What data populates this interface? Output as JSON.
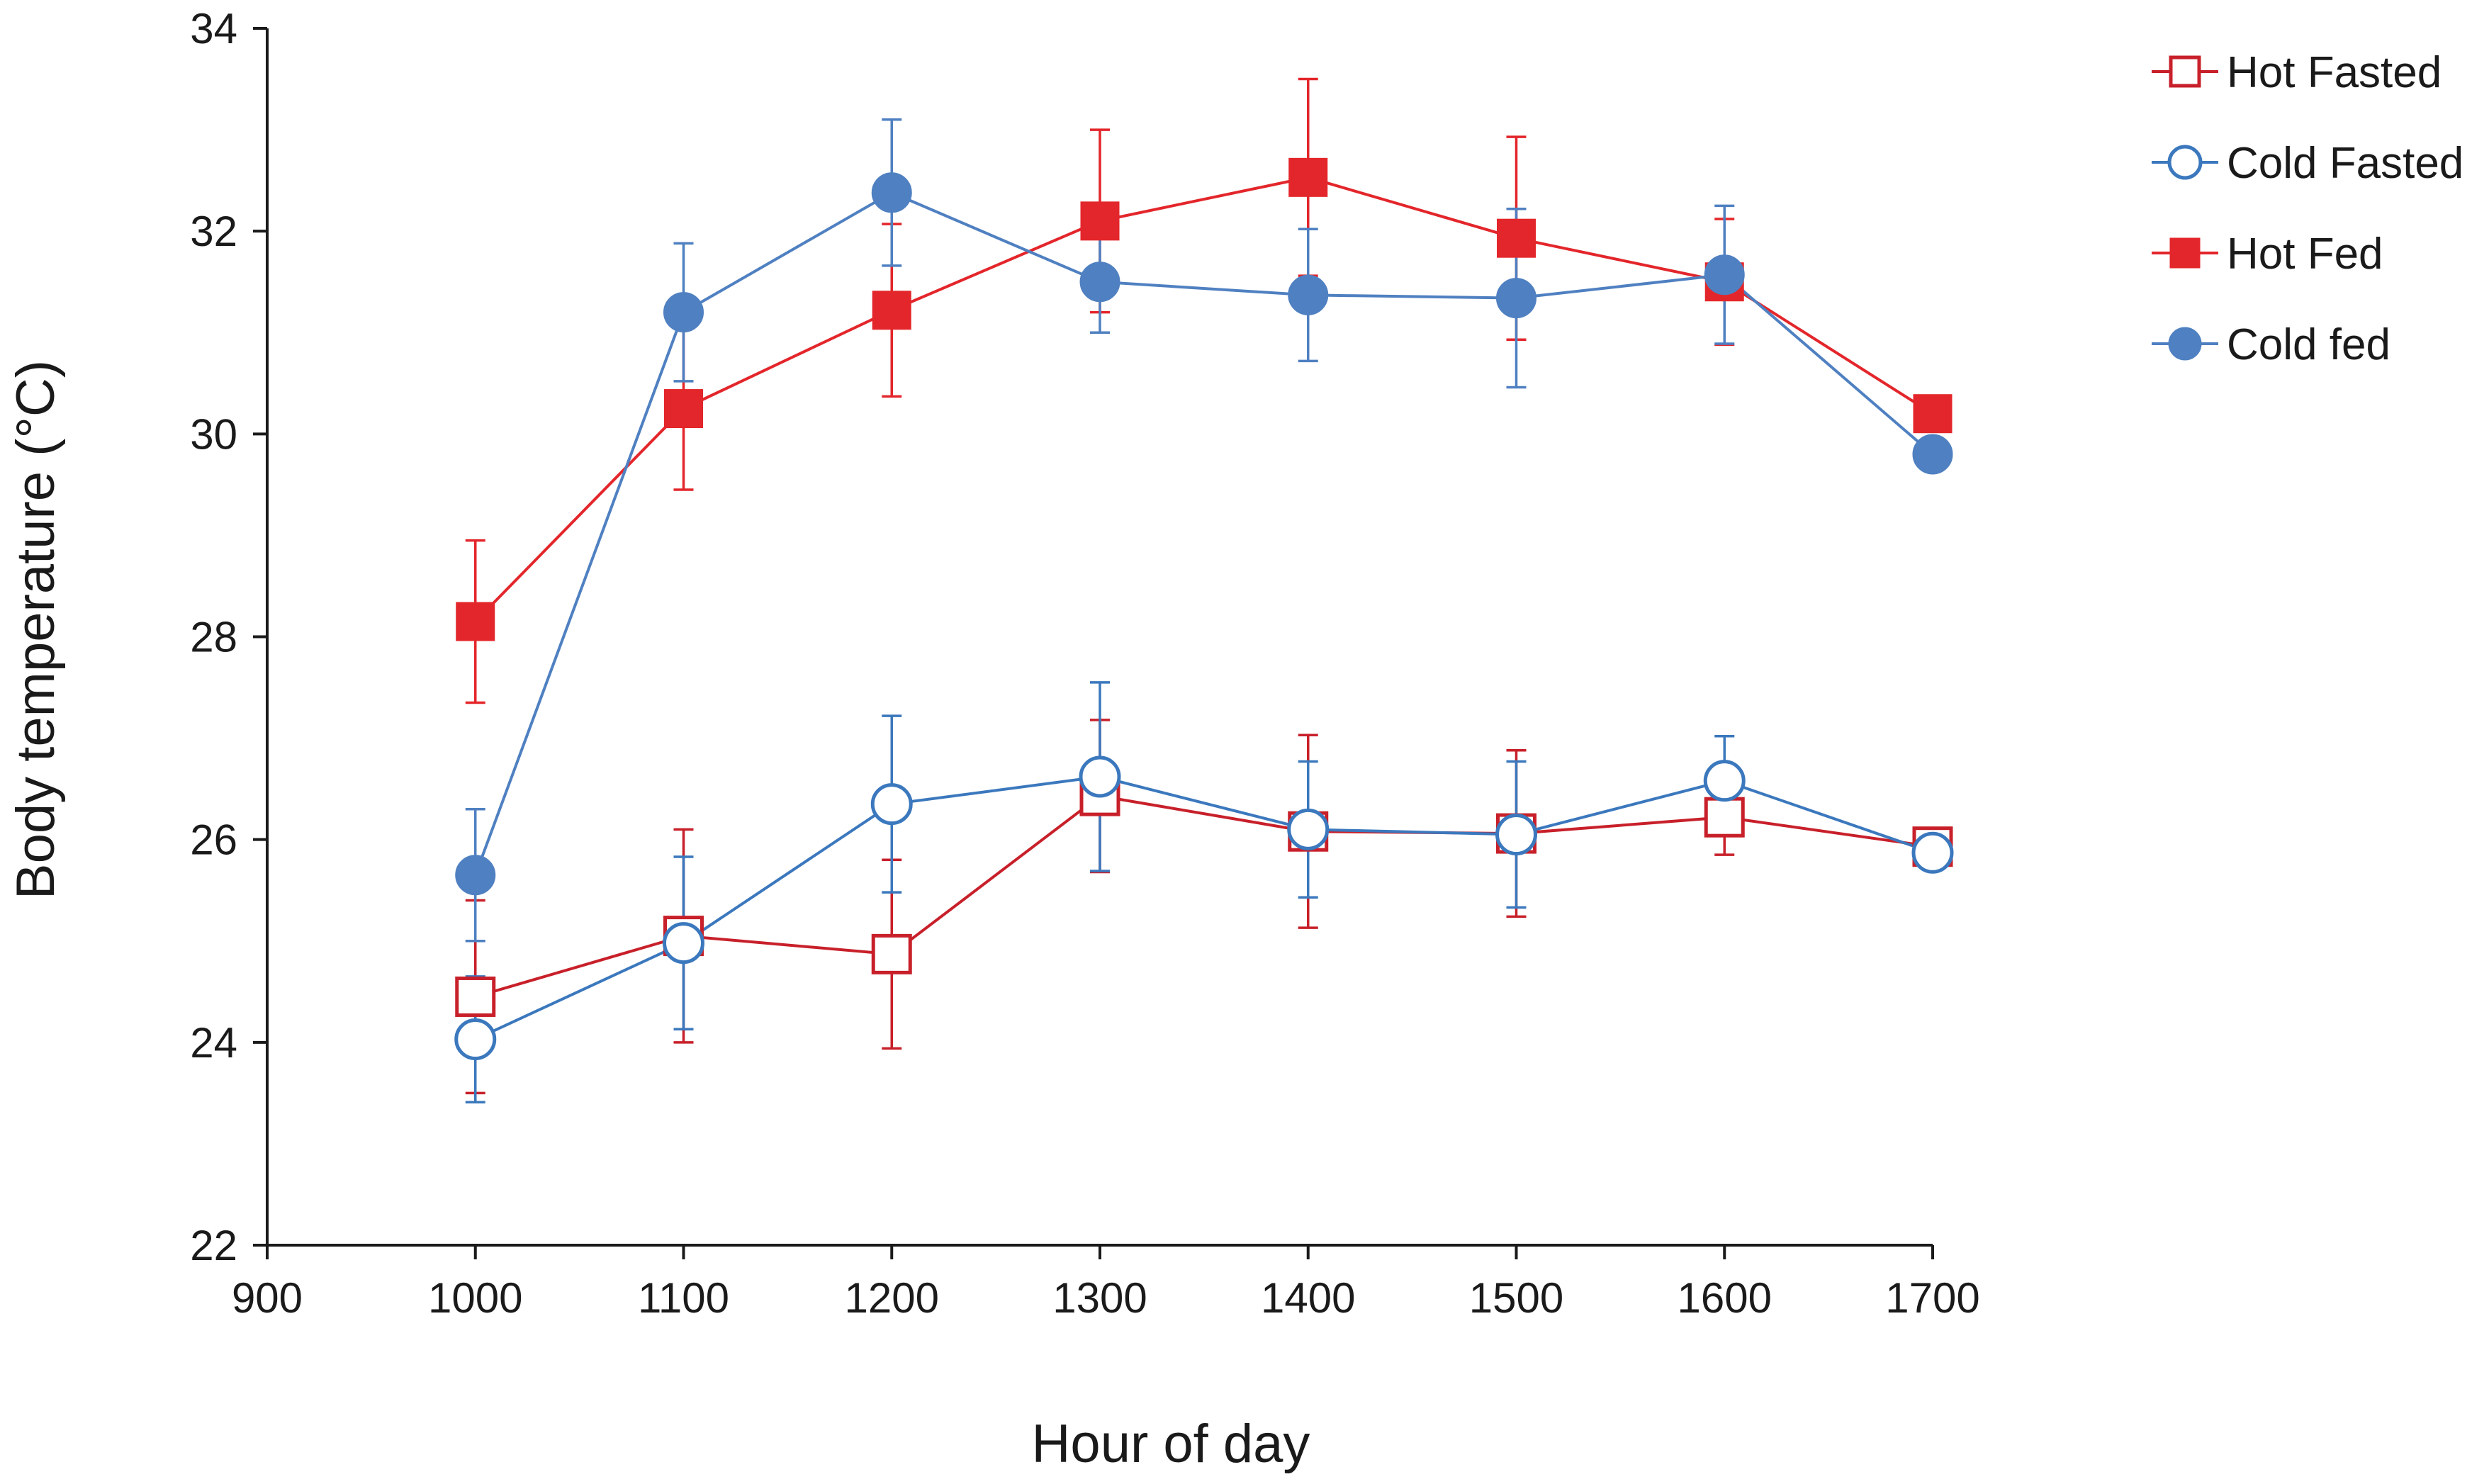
{
  "chart_data": {
    "type": "line",
    "title": "",
    "xlabel": "Hour of day",
    "ylabel": "Body temperature (°C)",
    "xlim": [
      900,
      1700
    ],
    "ylim": [
      22,
      34
    ],
    "xticks": [
      900,
      1000,
      1100,
      1200,
      1300,
      1400,
      1500,
      1600,
      1700
    ],
    "yticks": [
      22,
      24,
      26,
      28,
      30,
      32,
      34
    ],
    "grid": false,
    "legend_position": "top-right",
    "series": [
      {
        "name": "Hot Fasted",
        "color": "#c8202a",
        "marker": "square",
        "filled": false,
        "x": [
          1000,
          1100,
          1200,
          1300,
          1400,
          1500,
          1600,
          1700
        ],
        "y": [
          24.45,
          25.05,
          24.87,
          26.43,
          26.08,
          26.06,
          26.22,
          25.93
        ],
        "err": [
          0.95,
          1.05,
          0.93,
          0.75,
          0.95,
          0.82,
          0.37,
          0.0
        ]
      },
      {
        "name": "Cold Fasted",
        "color": "#3b78bd",
        "marker": "circle",
        "filled": false,
        "x": [
          1000,
          1100,
          1200,
          1300,
          1400,
          1500,
          1600,
          1700
        ],
        "y": [
          24.03,
          24.98,
          26.35,
          26.62,
          26.1,
          26.05,
          26.58,
          25.87
        ],
        "err": [
          0.62,
          0.85,
          0.87,
          0.93,
          0.67,
          0.72,
          0.44,
          0.0
        ]
      },
      {
        "name": "Hot Fed",
        "color": "#e3262b",
        "marker": "square",
        "filled": true,
        "x": [
          1000,
          1100,
          1200,
          1300,
          1400,
          1500,
          1600,
          1700
        ],
        "y": [
          28.15,
          30.25,
          31.22,
          32.1,
          32.53,
          31.93,
          31.5,
          30.2
        ],
        "err": [
          0.8,
          0.8,
          0.85,
          0.9,
          0.97,
          1.0,
          0.62,
          0.0
        ]
      },
      {
        "name": "Cold fed",
        "color": "#4f80c1",
        "marker": "circle",
        "filled": true,
        "x": [
          1000,
          1100,
          1200,
          1300,
          1400,
          1500,
          1600,
          1700
        ],
        "y": [
          25.65,
          31.2,
          32.38,
          31.5,
          31.37,
          31.34,
          31.57,
          29.8
        ],
        "err": [
          0.65,
          0.68,
          0.72,
          0.5,
          0.65,
          0.88,
          0.68,
          0.0
        ]
      }
    ]
  }
}
